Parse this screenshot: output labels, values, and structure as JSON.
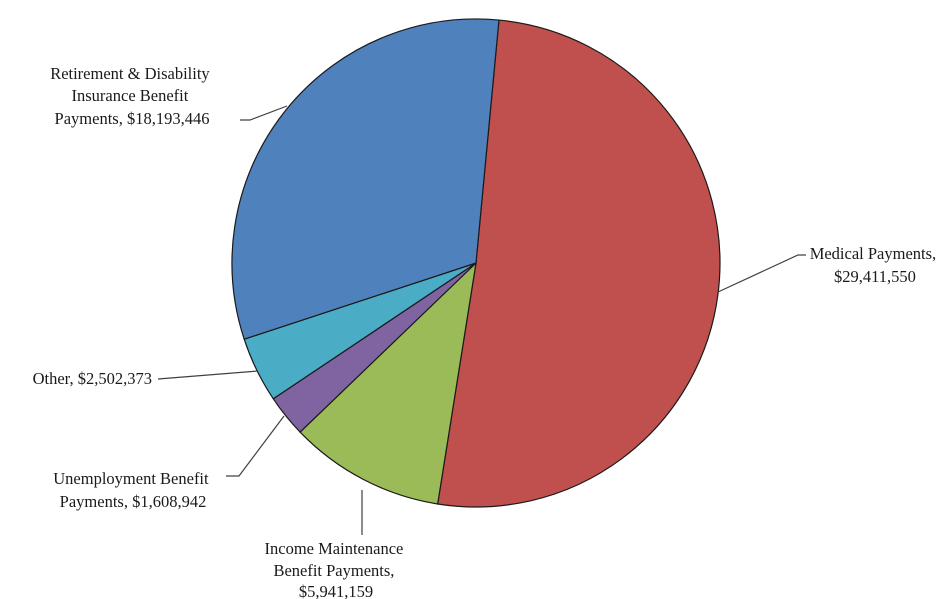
{
  "chart_data": {
    "type": "pie",
    "unit": "$",
    "start_angle_deg": 5.4,
    "direction": "clockwise",
    "slices": [
      {
        "name": "Medical Payments",
        "value": 29411550,
        "color": "#c0504d",
        "label_lines": [
          "Medical Payments,",
          "$29,411,550"
        ]
      },
      {
        "name": "Income Maintenance Benefit Payments",
        "value": 5941159,
        "color": "#9bbb59",
        "label_lines": [
          "Income Maintenance",
          "Benefit Payments,",
          "$5,941,159"
        ]
      },
      {
        "name": "Unemployment Benefit Payments",
        "value": 1608942,
        "color": "#8064a2",
        "label_lines": [
          "Unemployment  Benefit",
          "Payments,  $1,608,942"
        ]
      },
      {
        "name": "Other",
        "value": 2502373,
        "color": "#4bacc6",
        "label_lines": [
          "Other,  $2,502,373"
        ]
      },
      {
        "name": "Retirement & Disability Insurance Benefit Payments",
        "value": 18193446,
        "color": "#4f81bd",
        "label_lines": [
          "Retirement & Disability",
          "Insurance Benefit",
          "Payments,  $18,193,446"
        ]
      }
    ]
  }
}
